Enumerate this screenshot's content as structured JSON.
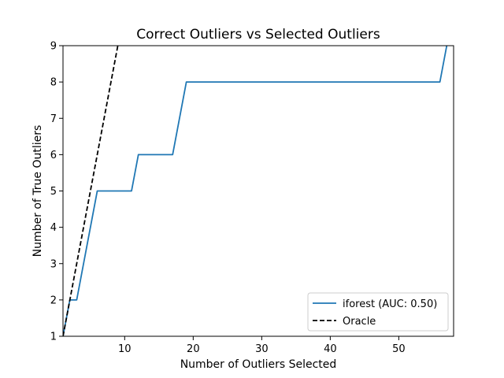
{
  "chart_data": {
    "type": "line",
    "title": "Correct Outliers vs Selected Outliers",
    "xlabel": "Number of Outliers Selected",
    "ylabel": "Number of True Outliers",
    "xlim": [
      1,
      58
    ],
    "ylim": [
      1,
      9
    ],
    "xticks": [
      10,
      20,
      30,
      40,
      50
    ],
    "yticks": [
      1,
      2,
      3,
      4,
      5,
      6,
      7,
      8,
      9
    ],
    "grid": false,
    "legend_position": "lower-right",
    "series": [
      {
        "name": "iforest (AUC: 0.50)",
        "color": "#1f77b4",
        "style": "solid",
        "x": [
          1,
          2,
          3,
          6,
          11,
          12,
          17,
          19,
          56,
          57
        ],
        "y": [
          1,
          2,
          2,
          5,
          5,
          6,
          6,
          8,
          8,
          9
        ]
      },
      {
        "name": "Oracle",
        "color": "#000000",
        "style": "dashed",
        "x": [
          1,
          9
        ],
        "y": [
          1,
          9
        ]
      }
    ]
  }
}
